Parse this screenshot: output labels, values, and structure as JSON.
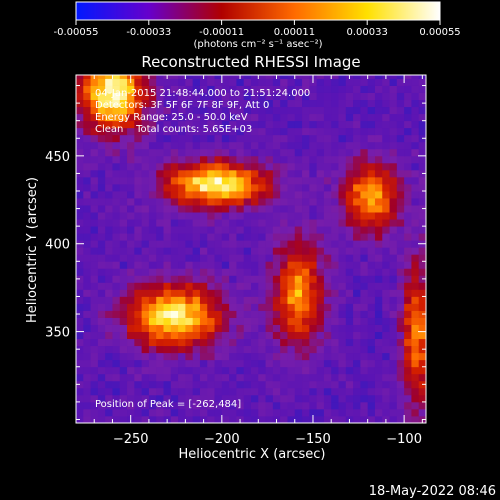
{
  "colorbar": {
    "ticks": [
      "-0.00055",
      "-0.00033",
      "-0.00011",
      "0.00011",
      "0.00033",
      "0.00055"
    ],
    "tick_values": [
      -0.00055,
      -0.00033,
      -0.00011,
      0.00011,
      0.00033,
      0.00055
    ],
    "units": "(photons cm⁻² s⁻¹ asec⁻²)",
    "stops": [
      "#0018ff",
      "#6600cc",
      "#b00000",
      "#ff6a00",
      "#ffe000",
      "#ffffff"
    ]
  },
  "chart_data": {
    "type": "heatmap",
    "title": "Reconstructed RHESSI Image",
    "xlabel": "Heliocentric X (arcsec)",
    "ylabel": "Heliocentric Y (arcsec)",
    "xlim": [
      -280,
      -88
    ],
    "ylim": [
      298,
      496
    ],
    "xticks": [
      -250,
      -200,
      -150,
      -100
    ],
    "yticks": [
      350,
      400,
      450
    ],
    "xtick_labels": [
      "−250",
      "−200",
      "−150",
      "−100"
    ],
    "ytick_labels": [
      "350",
      "400",
      "450"
    ],
    "info_lines": [
      "04-Jan-2015 21:48:44.000 to 21:51:24.000",
      "Detectors: 3F 5F 6F 7F 8F 9F, Att 0",
      "Energy Range: 25.0 - 50.0 keV",
      "Clean    Total counts: 5.65E+03"
    ],
    "peak_label": "Position of Peak = [-262,484]",
    "peak": {
      "x": -262,
      "y": 484
    },
    "sources": [
      {
        "name": "upper-left",
        "x": -262,
        "y": 484,
        "rx": 18,
        "ry": 22,
        "amp": 1.0
      },
      {
        "name": "upper-center",
        "x": -205,
        "y": 432,
        "rx": 28,
        "ry": 13,
        "amp": 0.95
      },
      {
        "name": "upper-right",
        "x": -120,
        "y": 425,
        "rx": 16,
        "ry": 20,
        "amp": 0.75
      },
      {
        "name": "lower-left",
        "x": -228,
        "y": 357,
        "rx": 26,
        "ry": 18,
        "amp": 0.95
      },
      {
        "name": "center-diagonal",
        "x": -160,
        "y": 370,
        "rx": 14,
        "ry": 30,
        "amp": 0.7
      },
      {
        "name": "right-edge",
        "x": -95,
        "y": 345,
        "rx": 8,
        "ry": 40,
        "amp": 0.7
      }
    ],
    "colormap": "blue-purple-red-yellow-white"
  },
  "footer": {
    "date": "18-May-2022 08:46"
  }
}
